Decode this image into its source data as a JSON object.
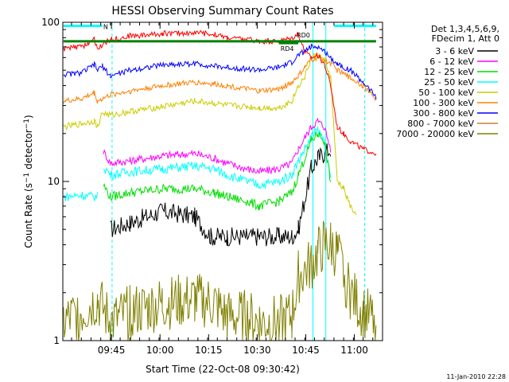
{
  "chart_data": {
    "type": "line",
    "title": "HESSI Observing Summary Count Rates",
    "xlabel": "Start Time (22-Oct-08 09:30:42)",
    "ylabel": "Count Rate (s⁻¹ detector⁻¹)",
    "yscale": "log",
    "ylim": [
      1,
      100
    ],
    "xlim_minutes_after_start": [
      -0.7,
      98.0
    ],
    "x_tick_labels": [
      "09:45",
      "10:00",
      "10:15",
      "10:30",
      "10:45",
      "11:00"
    ],
    "x_ticks_minutes_after_start": [
      14.3,
      29.3,
      44.3,
      59.3,
      74.3,
      89.3
    ],
    "y_tick_labels": [
      "1",
      "10",
      "100"
    ],
    "y_ticks": [
      1,
      10,
      100
    ],
    "grid": false,
    "legend_position": "right",
    "legend_header": [
      "Det 1,3,4,5,6,9,",
      "FDecim 1, Att 0"
    ],
    "footer": "11-Jan-2010 22:28",
    "x_unit_note": "x values are minutes after 22-Oct-08 09:30:42",
    "series": [
      {
        "name": "3 - 6 keV",
        "color": "#000000",
        "x": [
          11.5,
          14,
          20,
          30,
          40,
          45,
          50,
          56,
          60,
          66,
          70,
          72,
          76,
          78,
          80,
          82,
          84,
          86
        ],
        "values": [
          null,
          5.0,
          5.5,
          6.5,
          6.0,
          4.5,
          4.5,
          4.5,
          4.5,
          4.5,
          4.5,
          5.0,
          12,
          14,
          15,
          16,
          null,
          null
        ]
      },
      {
        "name": "6 - 12 keV",
        "color": "#ff00ff",
        "x": [
          11.5,
          11.8,
          14,
          20,
          30,
          40,
          46,
          50,
          56,
          60,
          66,
          70,
          72,
          76,
          78,
          80,
          82,
          84,
          86,
          88,
          92,
          96
        ],
        "values": [
          null,
          15.5,
          13.0,
          13.5,
          14.5,
          15.0,
          14.0,
          13.0,
          12.0,
          11.5,
          12.0,
          13.0,
          16.0,
          22.0,
          24.0,
          22.0,
          16.0,
          null,
          null,
          null,
          null,
          null
        ]
      },
      {
        "name": "12 - 25 keV",
        "color": "#00dd00",
        "x": [
          11.5,
          11.8,
          14,
          20,
          30,
          40,
          46,
          50,
          56,
          60,
          66,
          70,
          72,
          76,
          78,
          80,
          82,
          84
        ],
        "values": [
          null,
          9.5,
          8.0,
          8.5,
          9.0,
          9.0,
          8.5,
          8.0,
          7.5,
          7.0,
          7.5,
          8.5,
          11.0,
          18.0,
          20.0,
          18.0,
          10.0,
          null
        ]
      },
      {
        "name": "25 - 50 keV",
        "color": "#00ffff",
        "x": [
          -0.5,
          5,
          10,
          11.5,
          11.8,
          14,
          20,
          30,
          40,
          46,
          50,
          56,
          60,
          66,
          70,
          72,
          76,
          78,
          80,
          82,
          84
        ],
        "values": [
          8.0,
          8.2,
          8.0,
          null,
          12.5,
          11.0,
          11.5,
          12.0,
          12.5,
          12.0,
          11.0,
          10.0,
          9.5,
          10.0,
          11.0,
          13.5,
          19.0,
          21.0,
          18.0,
          10.0,
          null
        ]
      },
      {
        "name": "50 - 100 keV",
        "color": "#cccc00",
        "x": [
          -0.5,
          5,
          9,
          10,
          11.5,
          14,
          20,
          30,
          40,
          46,
          50,
          56,
          60,
          66,
          70,
          72,
          74,
          76,
          78,
          80,
          82,
          84,
          86,
          88,
          90
        ],
        "values": [
          22,
          23,
          24,
          22,
          27,
          26,
          27.5,
          29.5,
          32,
          31,
          30,
          29.5,
          29,
          29,
          32,
          40,
          45,
          60,
          62,
          58,
          45,
          10,
          9,
          7,
          6
        ]
      },
      {
        "name": "100 - 300 keV",
        "color": "#ff8000",
        "x": [
          -0.5,
          5,
          9,
          10,
          11.5,
          14,
          20,
          30,
          40,
          46,
          50,
          56,
          60,
          66,
          70,
          72,
          74,
          76,
          78,
          80,
          82,
          84,
          88,
          92,
          96
        ],
        "values": [
          32,
          33,
          36,
          32,
          33,
          35,
          37,
          40,
          42,
          41,
          40,
          38,
          37,
          38,
          42,
          46,
          52,
          58,
          60,
          58,
          55,
          50,
          45,
          40,
          33
        ]
      },
      {
        "name": "300 - 800 keV",
        "color": "#0000ff",
        "x": [
          -0.5,
          5,
          9,
          10,
          11.5,
          14,
          20,
          30,
          40,
          46,
          50,
          56,
          60,
          66,
          70,
          72,
          74,
          76,
          78,
          80,
          82,
          84,
          88,
          92,
          96
        ],
        "values": [
          47,
          48,
          54,
          50,
          53,
          46,
          50,
          54,
          55,
          53,
          52,
          51,
          50,
          52,
          56,
          62,
          66,
          70,
          70,
          66,
          60,
          55,
          50,
          42,
          34
        ]
      },
      {
        "name": "800 - 7000 keV",
        "color": "#c08040",
        "x": [],
        "values": []
      },
      {
        "name": "7000 - 20000 keV",
        "color": "#808000",
        "x": [
          -0.5,
          5,
          10,
          14,
          20,
          30,
          40,
          46,
          50,
          56,
          60,
          66,
          70,
          72,
          76,
          78,
          80,
          82,
          84,
          88,
          92,
          96
        ],
        "values": [
          1.3,
          1.5,
          1.8,
          1.3,
          1.5,
          1.7,
          1.8,
          1.7,
          1.4,
          1.4,
          1.3,
          1.3,
          1.4,
          2.5,
          3.0,
          3.5,
          4.0,
          4.0,
          3.5,
          2.0,
          1.5,
          1.3
        ]
      }
    ],
    "extra_red_series": {
      "color": "#ff0000",
      "x": [
        -0.5,
        5,
        9,
        10,
        11.5,
        14,
        20,
        30,
        40,
        46,
        50,
        56,
        60,
        66,
        70,
        72,
        74,
        76,
        78,
        80,
        82,
        84,
        86,
        88,
        92,
        96
      ],
      "values": [
        68,
        70,
        78,
        68,
        72,
        78,
        82,
        85,
        86,
        84,
        80,
        78,
        76,
        76,
        80,
        85,
        65,
        60,
        62,
        55,
        40,
        22,
        20,
        18,
        16,
        15
      ]
    },
    "attenuator_bars": [
      {
        "label": "N",
        "color": "#00ffff",
        "x_start": -0.5,
        "x_end": 11.5,
        "level": 95
      },
      {
        "label": "RD0",
        "color": "#008000",
        "x_start": -0.5,
        "x_end": 96,
        "level": 76
      },
      {
        "label": "RD4",
        "color": "#008000",
        "x_start": 66,
        "x_end": 72,
        "level": 74
      },
      {
        "label": "",
        "color": "#00ffff",
        "x_start": 83,
        "x_end": 96,
        "level": 95
      }
    ],
    "vertical_markers": [
      {
        "x": 14.5,
        "color": "#00ffff",
        "style": "dashed"
      },
      {
        "x": 76.5,
        "color": "#00ffff",
        "style": "solid"
      },
      {
        "x": 80.5,
        "color": "#00ffff",
        "style": "solid"
      },
      {
        "x": 92.5,
        "color": "#00ffff",
        "style": "dashed"
      }
    ]
  },
  "labels": {
    "title": "HESSI Observing Summary Count Rates",
    "xlabel": "Start Time (22-Oct-08 09:30:42)",
    "footer": "11-Jan-2010 22:28",
    "legend_header_1": "Det 1,3,4,5,6,9,",
    "legend_header_2": "FDecim 1, Att 0",
    "bar_n": "N",
    "bar_rd0": "RD0",
    "bar_rd4": "RD4",
    "ylabel_main": "Count Rate (s",
    "ylabel_sup1": "−1",
    "ylabel_mid": " detector",
    "ylabel_sup2": "−1",
    "ylabel_end": ")"
  }
}
